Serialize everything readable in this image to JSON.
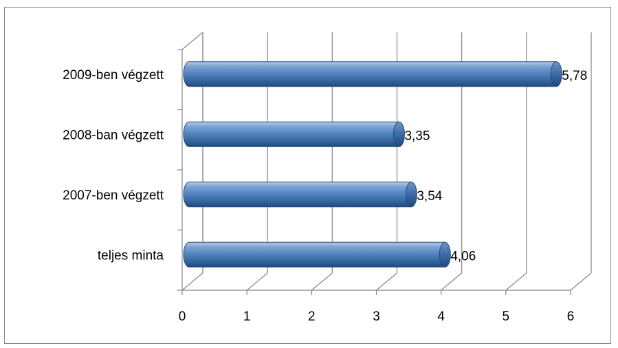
{
  "chart_data": {
    "type": "bar",
    "orientation": "horizontal",
    "style": "3d-cylinder",
    "title": "",
    "xlabel": "",
    "ylabel": "",
    "categories": [
      "teljes minta",
      "2007-ben végzett",
      "2008-ban végzett",
      "2009-ben végzett"
    ],
    "values": [
      4.06,
      3.54,
      3.35,
      5.78
    ],
    "data_labels": [
      "4,06",
      "3,54",
      "3,35",
      "5,78"
    ],
    "xlim": [
      0,
      6
    ],
    "x_ticks": [
      "0",
      "1",
      "2",
      "3",
      "4",
      "5",
      "6"
    ],
    "grid": true,
    "legend": "none",
    "bar_color": "#4F81BD",
    "bar_color_dark": "#1F497D",
    "bar_color_light": "#95B3D7"
  }
}
